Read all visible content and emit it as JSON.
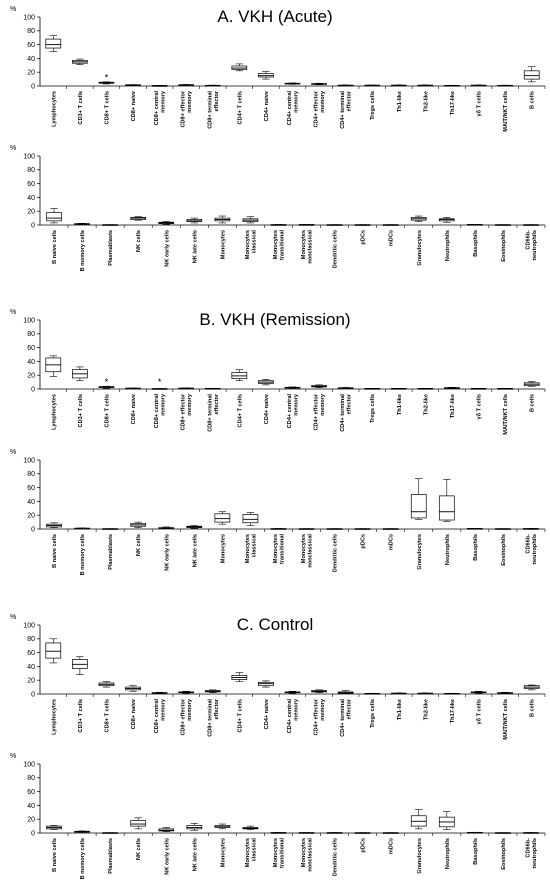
{
  "chart_data": [
    {
      "type": "box",
      "title": "A. VKH (Acute)",
      "ylabel": "%",
      "ylim": [
        0,
        100
      ],
      "yticks": [
        0,
        20,
        40,
        60,
        80,
        100
      ],
      "categories": [
        "Lymphocytes",
        "CD3+ T cells",
        "CD8+ T cells",
        "CD8+ naive",
        "CD8+ central memory",
        "CD8+ effector memory",
        "CD8+ terminal effector",
        "CD4+ T cells",
        "CD4+ naive",
        "CD4+ central memory",
        "CD4+ effector memory",
        "CD4+ terminal effector",
        "Tregs cells",
        "Th1-like",
        "Th2-like",
        "Th17-like",
        "γδ T cells",
        "MAIT/NKT cells",
        "B cells"
      ],
      "boxes": [
        [
          50,
          55,
          60,
          68,
          73
        ],
        [
          31,
          33,
          35,
          37,
          39
        ],
        [
          3,
          4,
          5,
          5.5,
          6
        ],
        [
          1,
          1.2,
          1.5,
          1.8,
          2
        ],
        [
          0.3,
          0.4,
          0.5,
          0.6,
          0.8
        ],
        [
          1,
          1.3,
          1.6,
          1.9,
          2.2
        ],
        [
          0.4,
          0.6,
          0.8,
          1,
          1.3
        ],
        [
          22,
          24,
          26,
          29,
          32
        ],
        [
          10,
          13,
          15,
          18,
          21
        ],
        [
          2.5,
          3,
          3.5,
          4,
          4.5
        ],
        [
          2,
          2.5,
          3,
          3.5,
          4
        ],
        [
          0.5,
          0.8,
          1,
          1.2,
          1.5
        ],
        [
          0.5,
          0.7,
          1,
          1.2,
          1.4
        ],
        [
          0.5,
          0.8,
          1,
          1.2,
          1.5
        ],
        [
          0.5,
          0.7,
          1,
          1.2,
          1.5
        ],
        [
          0.3,
          0.5,
          0.7,
          0.9,
          1.1
        ],
        [
          0.5,
          0.8,
          1,
          1.2,
          1.5
        ],
        [
          0.4,
          0.6,
          0.8,
          1,
          1.2
        ],
        [
          6,
          10,
          15,
          22,
          28
        ]
      ],
      "annotations": [
        {
          "category": "CD8+ T cells",
          "text": "*",
          "y": 12
        }
      ]
    },
    {
      "type": "box",
      "title": "",
      "ylabel": "%",
      "ylim": [
        0,
        100
      ],
      "yticks": [
        0,
        20,
        40,
        60,
        80,
        100
      ],
      "categories": [
        "B naive cells",
        "B memory cells",
        "Plasmablasts",
        "NK cells",
        "NK early cells",
        "NK late cells",
        "Monocytes",
        "Monocytes classical",
        "Monocytes transitional",
        "Monocytes nonclassical",
        "Dendritic cells",
        "pDCs",
        "mDCs",
        "Granulocytes",
        "Neutrophils",
        "Basophils",
        "Eosinophils",
        "CD66b- neutrophils"
      ],
      "boxes": [
        [
          3,
          6,
          10,
          18,
          24
        ],
        [
          0.5,
          1,
          1.5,
          2,
          2.5
        ],
        [
          0.1,
          0.2,
          0.3,
          0.4,
          0.5
        ],
        [
          7,
          8,
          10,
          11,
          12
        ],
        [
          1,
          2,
          3,
          4,
          5
        ],
        [
          3,
          5,
          6,
          8,
          10
        ],
        [
          3,
          6,
          8,
          10,
          13
        ],
        [
          3,
          5,
          7,
          9,
          12
        ],
        [
          0.2,
          0.3,
          0.4,
          0.5,
          0.7
        ],
        [
          0.2,
          0.3,
          0.5,
          0.6,
          0.8
        ],
        [
          0.1,
          0.2,
          0.3,
          0.4,
          0.5
        ],
        [
          0.1,
          0.2,
          0.3,
          0.4,
          0.5
        ],
        [
          0.1,
          0.2,
          0.3,
          0.4,
          0.5
        ],
        [
          5,
          7,
          9,
          11,
          13
        ],
        [
          4,
          6,
          8,
          9,
          11
        ],
        [
          0.2,
          0.4,
          0.6,
          0.8,
          1
        ],
        [
          0.1,
          0.2,
          0.3,
          0.4,
          0.5
        ],
        [
          0.1,
          0.2,
          0.3,
          0.4,
          0.5
        ]
      ],
      "annotations": []
    },
    {
      "type": "box",
      "title": "B. VKH (Remission)",
      "ylabel": "%",
      "ylim": [
        0,
        100
      ],
      "yticks": [
        0,
        20,
        40,
        60,
        80,
        100
      ],
      "categories": [
        "Lymphocytes",
        "CD3+ T cells",
        "CD8+ T cells",
        "CD8+ naive",
        "CD8+ central memory",
        "CD8+ effector memory",
        "CD8+ terminal effector",
        "CD4+ T cells",
        "CD4+ naive",
        "CD4+ central memory",
        "CD4+ effector memory",
        "CD4+ terminal effector",
        "Tregs cells",
        "Th1-like",
        "Th2-like",
        "Th17-like",
        "γδ T cells",
        "MAIT/NKT cells",
        "B cells"
      ],
      "boxes": [
        [
          18,
          25,
          35,
          45,
          48
        ],
        [
          12,
          16,
          22,
          28,
          32
        ],
        [
          1,
          2,
          3,
          3.5,
          4
        ],
        [
          0.5,
          0.7,
          1,
          1.2,
          1.5
        ],
        [
          0.2,
          0.3,
          0.4,
          0.5,
          0.6
        ],
        [
          0.5,
          0.8,
          1,
          1.3,
          1.6
        ],
        [
          0.3,
          0.5,
          0.7,
          0.9,
          1.1
        ],
        [
          12,
          15,
          19,
          24,
          28
        ],
        [
          6,
          8,
          10,
          12,
          14
        ],
        [
          1,
          1.5,
          2,
          2.5,
          3
        ],
        [
          2,
          3,
          4,
          5,
          6
        ],
        [
          0.8,
          1.2,
          1.5,
          1.8,
          2.2
        ],
        [
          0.2,
          0.4,
          0.6,
          0.8,
          1
        ],
        [
          0.2,
          0.4,
          0.6,
          0.8,
          1
        ],
        [
          0.2,
          0.4,
          0.6,
          0.8,
          1
        ],
        [
          0.5,
          1,
          1.5,
          2,
          2.5
        ],
        [
          0.2,
          0.4,
          0.6,
          0.8,
          1
        ],
        [
          0.2,
          0.4,
          0.6,
          0.8,
          1
        ],
        [
          4,
          5,
          7,
          9,
          11
        ]
      ],
      "annotations": [
        {
          "category": "CD8+ T cells",
          "text": "*",
          "y": 10
        },
        {
          "category": "CD8+ central memory",
          "text": "*",
          "y": 10
        }
      ]
    },
    {
      "type": "box",
      "title": "",
      "ylabel": "%",
      "ylim": [
        0,
        100
      ],
      "yticks": [
        0,
        20,
        40,
        60,
        80,
        100
      ],
      "categories": [
        "B naive cells",
        "B memory cells",
        "Plasmablasts",
        "NK cells",
        "NK early cells",
        "NK late cells",
        "Monocytes",
        "Monocytes classical",
        "Monocytes transitional",
        "Monocytes nonclassical",
        "Dendritic cells",
        "pDCs",
        "mDCs",
        "Granulocytes",
        "Neutrophils",
        "Basophils",
        "Eosinophils",
        "CD66b- neutrophils"
      ],
      "boxes": [
        [
          2,
          3,
          5,
          7,
          9
        ],
        [
          0.5,
          0.8,
          1,
          1.2,
          1.5
        ],
        [
          0.1,
          0.2,
          0.3,
          0.4,
          0.5
        ],
        [
          2,
          4,
          6,
          8,
          10
        ],
        [
          0.5,
          1,
          1.5,
          2,
          3
        ],
        [
          1,
          2,
          3,
          4,
          5
        ],
        [
          7,
          10,
          15,
          22,
          25
        ],
        [
          5,
          9,
          14,
          21,
          24
        ],
        [
          0.2,
          0.3,
          0.4,
          0.5,
          0.7
        ],
        [
          0.1,
          0.2,
          0.3,
          0.4,
          0.5
        ],
        [
          0.1,
          0.2,
          0.3,
          0.4,
          0.5
        ],
        [
          0.1,
          0.2,
          0.3,
          0.4,
          0.5
        ],
        [
          0.1,
          0.2,
          0.3,
          0.4,
          0.5
        ],
        [
          14,
          16,
          25,
          50,
          73
        ],
        [
          11,
          13,
          25,
          48,
          72
        ],
        [
          0.2,
          0.4,
          0.6,
          0.8,
          1
        ],
        [
          0.1,
          0.2,
          0.3,
          0.4,
          0.5
        ],
        [
          0.2,
          0.3,
          0.5,
          0.6,
          0.8
        ]
      ],
      "annotations": []
    },
    {
      "type": "box",
      "title": "C. Control",
      "ylabel": "%",
      "ylim": [
        0,
        100
      ],
      "yticks": [
        0,
        20,
        40,
        60,
        80,
        100
      ],
      "categories": [
        "Lymphocytes",
        "CD3+ T cells",
        "CD8+ T cells",
        "CD8+ naive",
        "CD8+ central memory",
        "CD8+ effector memory",
        "CD8+ terminal effector",
        "CD4+ T cells",
        "CD4+ naive",
        "CD4+ central memory",
        "CD4+ effector memory",
        "CD4+ terminal effector",
        "Tregs cells",
        "Th1-like",
        "Th2-like",
        "Th17-like",
        "γδ T cells",
        "MAIT/NKT cells",
        "B cells"
      ],
      "boxes": [
        [
          45,
          52,
          62,
          74,
          80
        ],
        [
          28,
          37,
          43,
          50,
          54
        ],
        [
          10,
          12,
          14,
          16,
          18
        ],
        [
          4,
          6,
          8,
          10,
          12
        ],
        [
          0.5,
          1,
          1.5,
          2,
          2.5
        ],
        [
          1,
          2,
          2.5,
          3,
          4
        ],
        [
          2,
          3,
          4,
          5,
          6
        ],
        [
          18,
          21,
          24,
          27,
          31
        ],
        [
          10,
          12,
          15,
          17,
          19
        ],
        [
          1,
          2,
          2.5,
          3,
          4
        ],
        [
          2,
          3,
          4,
          5,
          6
        ],
        [
          0.5,
          1,
          2,
          3,
          5
        ],
        [
          0.3,
          0.5,
          0.7,
          0.9,
          1.1
        ],
        [
          0.5,
          0.8,
          1,
          1.2,
          1.5
        ],
        [
          0.5,
          0.8,
          1,
          1.2,
          1.5
        ],
        [
          0.3,
          0.5,
          0.7,
          0.9,
          1.1
        ],
        [
          1,
          2,
          2.5,
          3,
          4
        ],
        [
          0.5,
          1,
          1.5,
          2,
          2.5
        ],
        [
          6,
          8,
          10,
          12,
          13
        ]
      ],
      "annotations": []
    },
    {
      "type": "box",
      "title": "",
      "ylabel": "%",
      "ylim": [
        0,
        100
      ],
      "yticks": [
        0,
        20,
        40,
        60,
        80,
        100
      ],
      "categories": [
        "B naive cells",
        "B memory cells",
        "Plasmablasts",
        "NK cells",
        "NK early cells",
        "NK late cells",
        "Monocytes",
        "Monocytes classical",
        "Monocytes transitional",
        "Monocytes nonclassical",
        "Dendritic cells",
        "pDCs",
        "mDCs",
        "Granulocytes",
        "Neutrophils",
        "Basophils",
        "Eosinophils",
        "CD66b- neutrophils"
      ],
      "boxes": [
        [
          5,
          6,
          8,
          10,
          11
        ],
        [
          1,
          1.5,
          2,
          2.5,
          3
        ],
        [
          0.1,
          0.2,
          0.3,
          0.4,
          0.5
        ],
        [
          6,
          10,
          13,
          18,
          22
        ],
        [
          2,
          3,
          4,
          6,
          8
        ],
        [
          4,
          6,
          8,
          11,
          14
        ],
        [
          6,
          8,
          9,
          11,
          13
        ],
        [
          5,
          6,
          7,
          8,
          10
        ],
        [
          0.3,
          0.4,
          0.5,
          0.6,
          0.8
        ],
        [
          0.2,
          0.3,
          0.4,
          0.5,
          0.6
        ],
        [
          0.2,
          0.3,
          0.4,
          0.5,
          0.6
        ],
        [
          0.1,
          0.2,
          0.3,
          0.4,
          0.5
        ],
        [
          0.1,
          0.2,
          0.3,
          0.4,
          0.5
        ],
        [
          6,
          10,
          17,
          25,
          34
        ],
        [
          5,
          9,
          16,
          23,
          31
        ],
        [
          0.3,
          0.5,
          0.7,
          0.9,
          1.1
        ],
        [
          0.1,
          0.2,
          0.3,
          0.4,
          0.5
        ],
        [
          0.2,
          0.3,
          0.4,
          0.5,
          0.7
        ]
      ],
      "annotations": []
    }
  ]
}
